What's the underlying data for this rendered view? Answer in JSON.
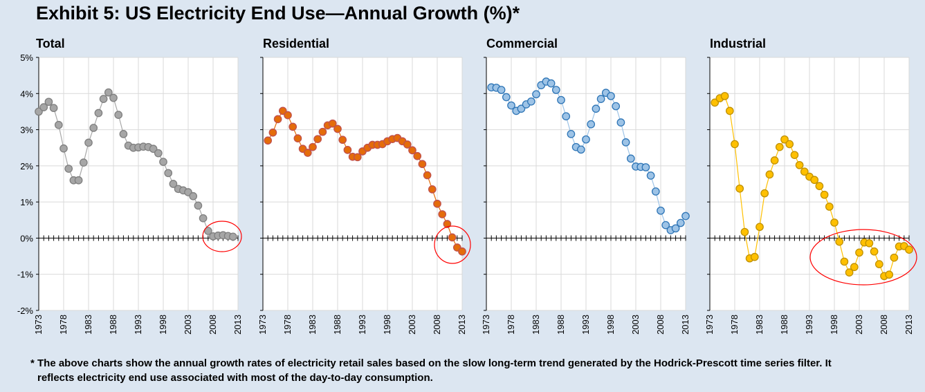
{
  "title": "Exhibit 5: US Electricity End Use—Annual Growth (%)*",
  "footnote_line1": "* The above charts show the annual growth rates of electricity retail sales based on the slow long-term trend generated by the Hodrick-Prescott time series filter. It",
  "footnote_line2": "reflects electricity end use associated with most of the day-to-day consumption.",
  "y_tick_labels": [
    "5%",
    "4%",
    "3%",
    "2%",
    "1%",
    "0%",
    "-1%",
    "-2%"
  ],
  "x_tick_labels": [
    "1973",
    "1978",
    "1983",
    "1988",
    "1993",
    "1998",
    "2003",
    "2008",
    "2013"
  ],
  "chart_data": [
    {
      "type": "line",
      "title": "Total",
      "color": "#a6a6a6",
      "edge_color": "#7f7f7f",
      "annotation": "red ellipse around 2008-2013",
      "ylim": [
        -2,
        5
      ],
      "xlim": [
        1973,
        2013
      ],
      "grid": true,
      "x_start": 1973,
      "values": [
        3.5,
        3.62,
        3.77,
        3.6,
        3.13,
        2.48,
        1.92,
        1.6,
        1.6,
        2.09,
        2.64,
        3.05,
        3.46,
        3.85,
        4.03,
        3.88,
        3.41,
        2.88,
        2.56,
        2.5,
        2.51,
        2.53,
        2.52,
        2.47,
        2.35,
        2.11,
        1.8,
        1.5,
        1.36,
        1.32,
        1.27,
        1.16,
        0.9,
        0.55,
        0.2,
        0.05,
        0.07,
        0.08,
        0.06,
        0.04
      ]
    },
    {
      "type": "line",
      "title": "Residential",
      "color": "#e46c0a",
      "edge_color": "#c0504d",
      "annotation": "red ellipse around 2010-2013",
      "ylim": [
        -2,
        5
      ],
      "xlim": [
        1973,
        2013
      ],
      "grid": true,
      "x_start": 1974,
      "values": [
        2.7,
        2.92,
        3.29,
        3.52,
        3.4,
        3.08,
        2.76,
        2.47,
        2.36,
        2.52,
        2.74,
        2.94,
        3.12,
        3.17,
        3.02,
        2.72,
        2.44,
        2.25,
        2.24,
        2.4,
        2.5,
        2.58,
        2.58,
        2.6,
        2.68,
        2.74,
        2.77,
        2.68,
        2.59,
        2.43,
        2.27,
        2.05,
        1.74,
        1.35,
        0.95,
        0.66,
        0.39,
        0.02,
        -0.26,
        -0.37
      ]
    },
    {
      "type": "line",
      "title": "Commercial",
      "color": "#9dc3e6",
      "edge_color": "#2e75b6",
      "ylim": [
        -2,
        5
      ],
      "xlim": [
        1973,
        2013
      ],
      "grid": true,
      "x_start": 1974,
      "values": [
        4.17,
        4.16,
        4.1,
        3.9,
        3.67,
        3.52,
        3.58,
        3.7,
        3.78,
        3.98,
        4.23,
        4.33,
        4.28,
        4.1,
        3.82,
        3.37,
        2.88,
        2.52,
        2.45,
        2.73,
        3.15,
        3.58,
        3.85,
        4.02,
        3.93,
        3.65,
        3.2,
        2.65,
        2.2,
        1.98,
        1.97,
        1.96,
        1.73,
        1.29,
        0.76,
        0.36,
        0.22,
        0.27,
        0.42,
        0.61
      ]
    },
    {
      "type": "line",
      "title": "Industrial",
      "color": "#ffc000",
      "edge_color": "#bf9000",
      "annotation": "red ellipse around 1998-2013",
      "ylim": [
        -2,
        5
      ],
      "xlim": [
        1973,
        2013
      ],
      "grid": true,
      "x_start": 1974,
      "values": [
        3.75,
        3.87,
        3.93,
        3.52,
        2.6,
        1.37,
        0.17,
        -0.56,
        -0.52,
        0.31,
        1.24,
        1.76,
        2.15,
        2.52,
        2.73,
        2.6,
        2.3,
        2.02,
        1.84,
        1.7,
        1.61,
        1.44,
        1.2,
        0.87,
        0.43,
        -0.1,
        -0.65,
        -0.95,
        -0.8,
        -0.4,
        -0.12,
        -0.14,
        -0.37,
        -0.72,
        -1.05,
        -1.01,
        -0.54,
        -0.23,
        -0.22,
        -0.32
      ]
    }
  ]
}
